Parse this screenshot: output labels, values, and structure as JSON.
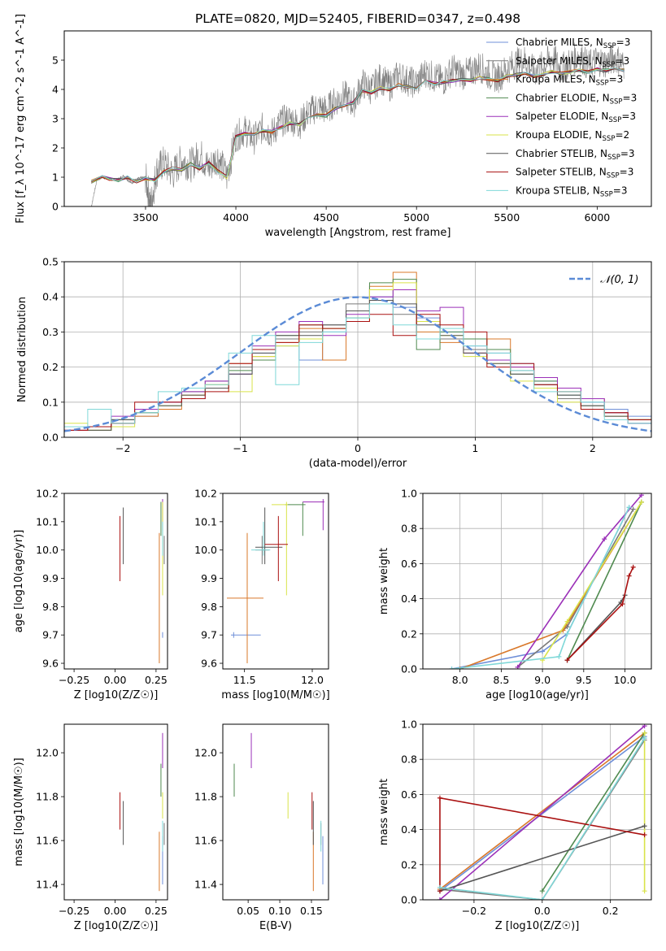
{
  "figure_title": "PLATE=0820, MJD=52405, FIBERID=0347, z=0.498",
  "colors": {
    "chabrier_miles": "#6f8fd8",
    "salpeter_miles": "#7a7a7a",
    "kroupa_miles": "#d9782a",
    "chabrier_elodie": "#4f8a4f",
    "salpeter_elodie": "#9b30b8",
    "kroupa_elodie": "#d9e34a",
    "chabrier_stelib": "#555555",
    "salpeter_stelib": "#aa1111",
    "kroupa_stelib": "#7fd8d8",
    "data": "#808080",
    "normal": "#5b8bd6"
  },
  "chart_data": [
    {
      "id": "spectrum",
      "type": "line",
      "xlabel": "wavelength [Angstrom, rest frame]",
      "ylabel": "Flux [f_λ 10^-17 erg cm^-2 s^-1 A^-1]",
      "xlim": [
        3050,
        6300
      ],
      "ylim": [
        0,
        6
      ],
      "xticks": [
        "3500",
        "4000",
        "4500",
        "5000",
        "5500",
        "6000"
      ],
      "yticks": [
        "0",
        "1",
        "2",
        "3",
        "4",
        "5"
      ],
      "legend_position": "top-right",
      "grid": false,
      "data_envelope": {
        "x": [
          3200,
          3230,
          3260,
          3300,
          3340,
          3380,
          3420,
          3460,
          3500,
          3530,
          3560,
          3600,
          3650,
          3700,
          3750,
          3800,
          3850,
          3900,
          3950,
          4000,
          4050,
          4100,
          4150,
          4200,
          4250,
          4300,
          4350,
          4400,
          4450,
          4500,
          4550,
          4600,
          4650,
          4700,
          4750,
          4800,
          4850,
          4900,
          4950,
          5000,
          5050,
          5100,
          5150,
          5200,
          5250,
          5300,
          5350,
          5400,
          5450,
          5500,
          5550,
          5600,
          5650,
          5700,
          5750,
          5800,
          5850,
          5900,
          5950,
          6000,
          6050,
          6100,
          6150
        ],
        "y": [
          0,
          0.9,
          1.0,
          0.95,
          0.9,
          1.05,
          0.8,
          0.95,
          1.0,
          0.0,
          1.2,
          1.5,
          1.1,
          1.6,
          1.4,
          1.8,
          1.3,
          1.7,
          1.0,
          2.4,
          2.6,
          2.3,
          2.7,
          2.5,
          2.9,
          3.0,
          2.8,
          3.2,
          3.4,
          3.3,
          3.6,
          3.8,
          3.5,
          4.2,
          4.0,
          4.4,
          4.1,
          4.5,
          4.3,
          4.2,
          4.6,
          4.4,
          4.3,
          4.7,
          4.5,
          4.6,
          4.8,
          4.5,
          4.4,
          4.7,
          4.9,
          5.0,
          4.6,
          4.8,
          5.1,
          4.7,
          4.9,
          5.2,
          4.8,
          5.0,
          4.9,
          5.1,
          4.8
        ]
      },
      "model": {
        "x": [
          3200,
          3260,
          3300,
          3350,
          3400,
          3450,
          3500,
          3550,
          3600,
          3650,
          3700,
          3750,
          3800,
          3850,
          3900,
          3950,
          4000,
          4050,
          4100,
          4150,
          4200,
          4250,
          4300,
          4350,
          4400,
          4450,
          4500,
          4550,
          4600,
          4650,
          4700,
          4750,
          4800,
          4850,
          4900,
          4950,
          5000,
          5050,
          5100,
          5150,
          5200,
          5250,
          5300,
          5350,
          5400,
          5450,
          5500,
          5550,
          5600,
          5650,
          5700,
          5750,
          5800,
          5850,
          5900,
          5950,
          6000,
          6050,
          6100,
          6150
        ],
        "y": [
          0.85,
          1.0,
          0.95,
          0.9,
          1.0,
          0.85,
          0.95,
          0.9,
          1.2,
          1.3,
          1.25,
          1.45,
          1.3,
          1.5,
          1.2,
          1.0,
          2.4,
          2.5,
          2.45,
          2.6,
          2.55,
          2.7,
          2.85,
          2.8,
          3.05,
          3.15,
          3.1,
          3.35,
          3.45,
          3.55,
          3.95,
          3.9,
          4.05,
          4.0,
          4.15,
          4.1,
          4.05,
          4.3,
          4.2,
          4.25,
          4.3,
          4.35,
          4.3,
          4.4,
          4.35,
          4.3,
          4.45,
          4.5,
          4.55,
          4.45,
          4.5,
          4.6,
          4.55,
          4.6,
          4.65,
          4.6,
          4.7,
          4.65,
          4.7,
          4.65
        ]
      }
    },
    {
      "id": "residuals",
      "type": "histogram",
      "xlabel": "(data-model)/error",
      "ylabel": "Normed distribution",
      "xlim": [
        -2.5,
        2.5
      ],
      "ylim": [
        0,
        0.5
      ],
      "xticks": [
        "−2",
        "−1",
        "0",
        "1",
        "2"
      ],
      "yticks": [
        "0.0",
        "0.1",
        "0.2",
        "0.3",
        "0.4",
        "0.5"
      ],
      "grid": true,
      "legend_label": "𝒩(0, 1)",
      "legend_position": "top-right",
      "bin_edges": [
        -2.5,
        -2.3,
        -2.1,
        -1.9,
        -1.7,
        -1.5,
        -1.3,
        -1.1,
        -0.9,
        -0.7,
        -0.5,
        -0.3,
        -0.1,
        0.1,
        0.3,
        0.5,
        0.7,
        0.9,
        1.1,
        1.3,
        1.5,
        1.7,
        1.9,
        2.1,
        2.3,
        2.5
      ],
      "series": [
        {
          "color": "chabrier_miles",
          "values": [
            0.03,
            0.02,
            0.04,
            0.06,
            0.09,
            0.11,
            0.14,
            0.18,
            0.24,
            0.26,
            0.22,
            0.3,
            0.36,
            0.4,
            0.37,
            0.34,
            0.3,
            0.26,
            0.24,
            0.21,
            0.16,
            0.12,
            0.1,
            0.08,
            0.06
          ]
        },
        {
          "color": "salpeter_miles",
          "values": [
            0.02,
            0.03,
            0.05,
            0.07,
            0.1,
            0.12,
            0.16,
            0.2,
            0.25,
            0.28,
            0.3,
            0.32,
            0.38,
            0.42,
            0.35,
            0.33,
            0.28,
            0.25,
            0.22,
            0.19,
            0.15,
            0.11,
            0.09,
            0.06,
            0.05
          ]
        },
        {
          "color": "kroupa_miles",
          "values": [
            0.02,
            0.02,
            0.04,
            0.06,
            0.08,
            0.12,
            0.15,
            0.21,
            0.23,
            0.27,
            0.31,
            0.22,
            0.33,
            0.43,
            0.47,
            0.3,
            0.27,
            0.24,
            0.28,
            0.2,
            0.14,
            0.13,
            0.11,
            0.07,
            0.05
          ]
        },
        {
          "color": "chabrier_elodie",
          "values": [
            0.03,
            0.02,
            0.05,
            0.08,
            0.09,
            0.13,
            0.14,
            0.19,
            0.22,
            0.29,
            0.32,
            0.31,
            0.34,
            0.44,
            0.45,
            0.25,
            0.3,
            0.28,
            0.25,
            0.18,
            0.16,
            0.12,
            0.09,
            0.07,
            0.04
          ]
        },
        {
          "color": "salpeter_elodie",
          "values": [
            0.02,
            0.03,
            0.06,
            0.08,
            0.1,
            0.13,
            0.16,
            0.18,
            0.26,
            0.3,
            0.33,
            0.29,
            0.35,
            0.4,
            0.42,
            0.36,
            0.37,
            0.24,
            0.22,
            0.2,
            0.17,
            0.14,
            0.11,
            0.07,
            0.04
          ]
        },
        {
          "color": "kroupa_elodie",
          "values": [
            0.04,
            0.02,
            0.03,
            0.07,
            0.09,
            0.12,
            0.15,
            0.13,
            0.23,
            0.26,
            0.28,
            0.31,
            0.33,
            0.42,
            0.44,
            0.33,
            0.29,
            0.23,
            0.21,
            0.16,
            0.14,
            0.1,
            0.08,
            0.06,
            0.05
          ]
        },
        {
          "color": "chabrier_stelib",
          "values": [
            0.03,
            0.02,
            0.05,
            0.07,
            0.09,
            0.12,
            0.14,
            0.18,
            0.24,
            0.29,
            0.29,
            0.32,
            0.36,
            0.39,
            0.38,
            0.32,
            0.29,
            0.24,
            0.21,
            0.18,
            0.15,
            0.12,
            0.09,
            0.06,
            0.05
          ]
        },
        {
          "color": "salpeter_stelib",
          "values": [
            0.02,
            0.03,
            0.04,
            0.1,
            0.1,
            0.11,
            0.13,
            0.21,
            0.25,
            0.27,
            0.32,
            0.31,
            0.33,
            0.35,
            0.29,
            0.35,
            0.32,
            0.3,
            0.2,
            0.21,
            0.15,
            0.13,
            0.08,
            0.07,
            0.05
          ]
        },
        {
          "color": "kroupa_stelib",
          "values": [
            0.03,
            0.08,
            0.04,
            0.07,
            0.13,
            0.14,
            0.15,
            0.24,
            0.29,
            0.15,
            0.27,
            0.3,
            0.34,
            0.38,
            0.32,
            0.28,
            0.31,
            0.26,
            0.24,
            0.19,
            0.13,
            0.13,
            0.1,
            0.05,
            0.04
          ]
        }
      ]
    },
    {
      "id": "age_vs_Z",
      "type": "scatter",
      "xlabel": "Z [log10(Z/Z☉)]",
      "ylabel": "age [log10(age/yr)]",
      "xlim": [
        -0.31,
        0.32
      ],
      "ylim": [
        9.58,
        10.2
      ],
      "xticks": [
        "−0.25",
        "0.00",
        "0.25"
      ],
      "yticks": [
        "9.6",
        "9.7",
        "9.8",
        "9.9",
        "10.0",
        "10.1",
        "10.2"
      ]
    },
    {
      "id": "age_vs_mass",
      "type": "scatter",
      "xlabel": "mass [log10(M/M☉)]",
      "ylabel": "",
      "xlim": [
        11.34,
        12.12
      ],
      "ylim": [
        9.58,
        10.2
      ],
      "xticks": [
        "11.5",
        "12.0"
      ],
      "yticks": [
        "9.6",
        "9.7",
        "9.8",
        "9.9",
        "10.0",
        "10.1",
        "10.2"
      ]
    },
    {
      "id": "mass_weight_vs_age",
      "type": "line",
      "xlabel": "age [log10(age/yr)]",
      "ylabel": "mass weight",
      "xlim": [
        7.55,
        10.32
      ],
      "ylim": [
        0,
        1
      ],
      "xticks": [
        "8.0",
        "8.5",
        "9.0",
        "9.5",
        "10.0"
      ],
      "yticks": [
        "0.0",
        "0.2",
        "0.4",
        "0.6",
        "0.8",
        "1.0"
      ],
      "grid": true
    },
    {
      "id": "mass_vs_Z",
      "type": "scatter",
      "xlabel": "Z [log10(Z/Z☉)]",
      "ylabel": "mass [log10(M/M☉)]",
      "xlim": [
        -0.31,
        0.32
      ],
      "ylim": [
        11.33,
        12.13
      ],
      "xticks": [
        "−0.25",
        "0.00",
        "0.25"
      ],
      "yticks": [
        "11.4",
        "11.6",
        "11.8",
        "12.0"
      ]
    },
    {
      "id": "mass_vs_ebv",
      "type": "scatter",
      "xlabel": "E(B-V)",
      "ylabel": "",
      "xlim": [
        0.01,
        0.177
      ],
      "ylim": [
        11.33,
        12.13
      ],
      "xticks": [
        "0.05",
        "0.10",
        "0.15"
      ],
      "yticks": [
        "11.4",
        "11.6",
        "11.8",
        "12.0"
      ]
    },
    {
      "id": "mass_weight_vs_Z",
      "type": "line",
      "xlabel": "Z [log10(Z/Z☉)]",
      "ylabel": "mass weight",
      "xlim": [
        -0.35,
        0.32
      ],
      "ylim": [
        0,
        1
      ],
      "xticks": [
        "−0.2",
        "0.0",
        "0.2"
      ],
      "yticks": [
        "0.0",
        "0.2",
        "0.4",
        "0.6",
        "0.8",
        "1.0"
      ],
      "grid": true
    }
  ],
  "legend": [
    {
      "base": "Chabrier MILES, N",
      "sub": "SSP",
      "tail": "=3",
      "color": "chabrier_miles"
    },
    {
      "base": "Salpeter MILES, N",
      "sub": "SSP",
      "tail": "=3",
      "color": "salpeter_miles"
    },
    {
      "base": "Kroupa MILES, N",
      "sub": "SSP",
      "tail": "=3",
      "color": "kroupa_miles"
    },
    {
      "base": "Chabrier ELODIE, N",
      "sub": "SSP",
      "tail": "=3",
      "color": "chabrier_elodie"
    },
    {
      "base": "Salpeter ELODIE, N",
      "sub": "SSP",
      "tail": "=3",
      "color": "salpeter_elodie"
    },
    {
      "base": "Kroupa ELODIE, N",
      "sub": "SSP",
      "tail": "=2",
      "color": "kroupa_elodie"
    },
    {
      "base": "Chabrier STELIB, N",
      "sub": "SSP",
      "tail": "=3",
      "color": "chabrier_stelib"
    },
    {
      "base": "Salpeter STELIB, N",
      "sub": "SSP",
      "tail": "=3",
      "color": "salpeter_stelib"
    },
    {
      "base": "Kroupa STELIB, N",
      "sub": "SSP",
      "tail": "=3",
      "color": "kroupa_stelib"
    }
  ],
  "fits": [
    {
      "color": "chabrier_miles",
      "Z": 0.29,
      "Zlo": 0.15,
      "Zhi": 0.3,
      "age": 9.7,
      "ageLo": 9.69,
      "ageHi": 9.71,
      "mass": 11.42,
      "massLo": 11.4,
      "massHi": 11.62,
      "ebv": 0.168,
      "mw_age": [
        [
          7.9,
          0.0
        ],
        [
          9.0,
          0.1
        ],
        [
          9.3,
          0.2
        ],
        [
          10.05,
          0.92
        ]
      ],
      "mw_Z": [
        [
          -0.3,
          0.05
        ],
        [
          0.3,
          0.93
        ]
      ]
    },
    {
      "color": "salpeter_miles",
      "Z": 0.3,
      "Zlo": 0.28,
      "Zhi": 0.31,
      "age": 10.0,
      "ageLo": 9.95,
      "ageHi": 10.05,
      "mass": 11.63,
      "massLo": 11.58,
      "massHi": 11.68,
      "ebv": 0.165,
      "mw_age": [
        [
          8.7,
          0.01
        ],
        [
          9.3,
          0.24
        ],
        [
          10.1,
          0.91
        ]
      ],
      "mw_Z": [
        [
          -0.3,
          0.06
        ],
        [
          0.0,
          0.0
        ],
        [
          0.3,
          0.91
        ]
      ]
    },
    {
      "color": "kroupa_miles",
      "Z": 0.27,
      "Zlo": 0.25,
      "Zhi": 0.3,
      "age": 9.83,
      "ageLo": 9.6,
      "ageHi": 10.06,
      "mass": 11.52,
      "massLo": 11.37,
      "massHi": 11.64,
      "ebv": 0.153,
      "mw_age": [
        [
          8.0,
          0.0
        ],
        [
          9.25,
          0.22
        ],
        [
          10.2,
          0.95
        ]
      ],
      "mw_Z": [
        [
          -0.3,
          0.06
        ],
        [
          0.3,
          0.95
        ]
      ]
    },
    {
      "color": "chabrier_elodie",
      "Z": 0.28,
      "Zlo": 0.18,
      "Zhi": 0.3,
      "age": 10.16,
      "ageLo": 10.05,
      "ageHi": 10.17,
      "mass": 11.93,
      "massLo": 11.8,
      "massHi": 11.95,
      "ebv": 0.028,
      "mw_age": [
        [
          9.3,
          0.05
        ],
        [
          10.2,
          0.95
        ]
      ],
      "mw_Z": [
        [
          0.0,
          0.05
        ],
        [
          0.3,
          0.95
        ]
      ]
    },
    {
      "color": "salpeter_elodie",
      "Z": 0.29,
      "Zlo": 0.2,
      "Zhi": 0.3,
      "age": 10.17,
      "ageLo": 10.07,
      "ageHi": 10.18,
      "mass": 12.08,
      "massLo": 11.93,
      "massHi": 12.09,
      "ebv": 0.055,
      "mw_age": [
        [
          8.7,
          0.01
        ],
        [
          9.75,
          0.74
        ],
        [
          10.2,
          0.99
        ]
      ],
      "mw_Z": [
        [
          -0.3,
          0.0
        ],
        [
          0.3,
          0.99
        ]
      ]
    },
    {
      "color": "kroupa_elodie",
      "Z": 0.29,
      "Zlo": 0.25,
      "Zhi": 0.31,
      "age": 10.16,
      "ageLo": 9.84,
      "ageHi": 10.17,
      "mass": 11.81,
      "massLo": 11.7,
      "massHi": 11.82,
      "ebv": 0.113,
      "mw_age": [
        [
          9.0,
          0.05
        ],
        [
          9.3,
          0.27
        ],
        [
          10.2,
          0.95
        ]
      ],
      "mw_Z": [
        [
          0.3,
          0.05
        ],
        [
          0.3,
          0.95
        ]
      ]
    },
    {
      "color": "chabrier_stelib",
      "Z": 0.05,
      "Zlo": -0.3,
      "Zhi": 0.29,
      "age": 10.01,
      "ageLo": 9.95,
      "ageHi": 10.15,
      "mass": 11.65,
      "massLo": 11.58,
      "massHi": 11.78,
      "ebv": 0.153,
      "mw_age": [
        [
          9.3,
          0.05
        ],
        [
          9.95,
          0.38
        ],
        [
          10.0,
          0.42
        ]
      ],
      "mw_Z": [
        [
          -0.3,
          0.05
        ],
        [
          0.3,
          0.42
        ]
      ]
    },
    {
      "color": "salpeter_stelib",
      "Z": 0.03,
      "Zlo": -0.3,
      "Zhi": 0.26,
      "age": 10.02,
      "ageLo": 9.89,
      "ageHi": 10.12,
      "mass": 11.75,
      "massLo": 11.65,
      "massHi": 11.82,
      "ebv": 0.151,
      "mw_age": [
        [
          9.3,
          0.05
        ],
        [
          9.97,
          0.37
        ],
        [
          10.05,
          0.53
        ],
        [
          10.1,
          0.58
        ]
      ],
      "mw_Z": [
        [
          -0.3,
          0.05
        ],
        [
          -0.3,
          0.58
        ],
        [
          0.3,
          0.37
        ]
      ]
    },
    {
      "color": "kroupa_stelib",
      "Z": 0.29,
      "Zlo": 0.0,
      "Zhi": 0.3,
      "age": 10.0,
      "ageLo": 9.98,
      "ageHi": 10.1,
      "mass": 11.64,
      "massLo": 11.55,
      "massHi": 11.69,
      "ebv": 0.165,
      "mw_age": [
        [
          7.9,
          0.0
        ],
        [
          9.2,
          0.07
        ],
        [
          9.3,
          0.2
        ],
        [
          10.05,
          0.92
        ]
      ],
      "mw_Z": [
        [
          -0.3,
          0.07
        ],
        [
          0.0,
          0.0
        ],
        [
          0.3,
          0.92
        ]
      ]
    }
  ]
}
